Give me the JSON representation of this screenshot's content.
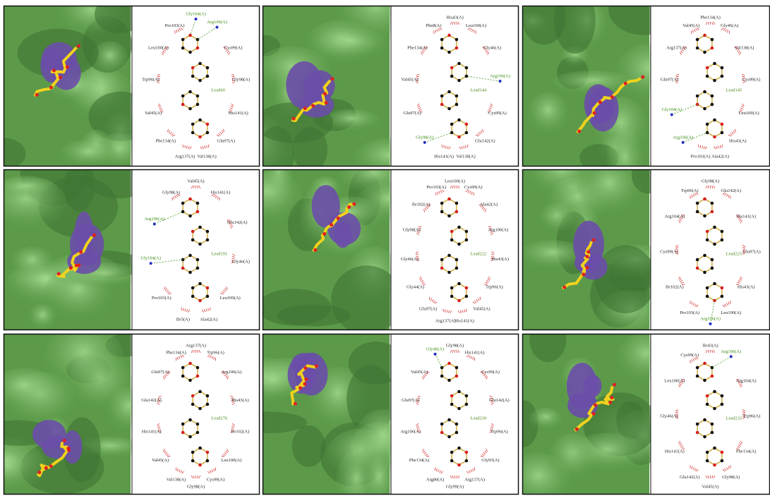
{
  "panels": [
    {
      "ligand": "Lead60",
      "residues": [
        {
          "label": "Gly104(A)",
          "hbond": true
        },
        {
          "label": "Arg106(A)",
          "hbond": true
        },
        {
          "label": "Cys99(A)",
          "hbond": false
        },
        {
          "label": "Gly98(A)",
          "hbond": false
        },
        {
          "label": "His141(A)",
          "hbond": false
        },
        {
          "label": "Glu97(A)",
          "hbond": false
        },
        {
          "label": "Val138(A)",
          "hbond": false
        },
        {
          "label": "Arg137(A)",
          "hbond": false
        },
        {
          "label": "Phe134(A)",
          "hbond": false
        },
        {
          "label": "Val45(A)",
          "hbond": false
        },
        {
          "label": "Trp96(A)",
          "hbond": false
        },
        {
          "label": "Leu100(A)",
          "hbond": false
        },
        {
          "label": "Pro103(A)",
          "hbond": false
        }
      ]
    },
    {
      "ligand": "Lead144",
      "residues": [
        {
          "label": "His43(A)",
          "hbond": false
        },
        {
          "label": "Leu100(A)",
          "hbond": false
        },
        {
          "label": "Gly46(A)",
          "hbond": false
        },
        {
          "label": "Arg106(A)",
          "hbond": true
        },
        {
          "label": "Cys99(A)",
          "hbond": false
        },
        {
          "label": "Glu142(A)",
          "hbond": false
        },
        {
          "label": "Val138(A)",
          "hbond": false
        },
        {
          "label": "His141(A)",
          "hbond": false
        },
        {
          "label": "Gly98(A)",
          "hbond": true
        },
        {
          "label": "Glu97(A)",
          "hbond": false
        },
        {
          "label": "Val45(A)",
          "hbond": false
        },
        {
          "label": "Phe134(A)",
          "hbond": false
        },
        {
          "label": "Phe8(A)",
          "hbond": false
        }
      ]
    },
    {
      "ligand": "Lead145",
      "residues": [
        {
          "label": "Phe134(A)",
          "hbond": false
        },
        {
          "label": "Gly46(A)",
          "hbond": false
        },
        {
          "label": "Val138(A)",
          "hbond": false
        },
        {
          "label": "Cys99(A)",
          "hbond": false
        },
        {
          "label": "Leu100(A)",
          "hbond": false
        },
        {
          "label": "His43(A)",
          "hbond": false
        },
        {
          "label": "Ala42(A)",
          "hbond": false
        },
        {
          "label": "Pro103(A)",
          "hbond": false
        },
        {
          "label": "Arg106(A)",
          "hbond": true
        },
        {
          "label": "Gly104(A)",
          "hbond": true
        },
        {
          "label": "Glu97(A)",
          "hbond": false
        },
        {
          "label": "Arg137(A)",
          "hbond": false
        },
        {
          "label": "Val45(A)",
          "hbond": false
        }
      ]
    },
    {
      "ligand": "Lead191",
      "residues": [
        {
          "label": "Val45(A)",
          "hbond": false
        },
        {
          "label": "His141(A)",
          "hbond": false
        },
        {
          "label": "Glu142(A)",
          "hbond": false
        },
        {
          "label": "Gly46(A)",
          "hbond": false
        },
        {
          "label": "Leu100(A)",
          "hbond": false
        },
        {
          "label": "Ala42(A)",
          "hbond": false
        },
        {
          "label": "Ile5(A)",
          "hbond": false
        },
        {
          "label": "Pro103(A)",
          "hbond": false
        },
        {
          "label": "Gly104(A)",
          "hbond": true
        },
        {
          "label": "Arg106(A)",
          "hbond": true
        },
        {
          "label": "Gly98(A)",
          "hbond": false
        }
      ]
    },
    {
      "ligand": "Lead222",
      "residues": [
        {
          "label": "Leu100(A)",
          "hbond": false
        },
        {
          "label": "Cys99(A)",
          "hbond": false
        },
        {
          "label": "Ala42(A)",
          "hbond": false
        },
        {
          "label": "Arg106(A)",
          "hbond": false
        },
        {
          "label": "His43(A)",
          "hbond": false
        },
        {
          "label": "Trp96(A)",
          "hbond": false
        },
        {
          "label": "Val45(A)",
          "hbond": false
        },
        {
          "label": "His141(A)",
          "hbond": false
        },
        {
          "label": "Arg137(A)",
          "hbond": false
        },
        {
          "label": "Glu97(A)",
          "hbond": false
        },
        {
          "label": "Gly44(A)",
          "hbond": false
        },
        {
          "label": "Gly46(A)",
          "hbond": false
        },
        {
          "label": "Gly98(A)",
          "hbond": false
        },
        {
          "label": "Ile102(A)",
          "hbond": false
        },
        {
          "label": "Pro103(A)",
          "hbond": false
        }
      ]
    },
    {
      "ligand": "Lead225",
      "residues": [
        {
          "label": "Gly98(A)",
          "hbond": false
        },
        {
          "label": "Glu142(A)",
          "hbond": false
        },
        {
          "label": "His141(A)",
          "hbond": false
        },
        {
          "label": "Glu97(A)",
          "hbond": false
        },
        {
          "label": "His43(A)",
          "hbond": false
        },
        {
          "label": "Leu100(A)",
          "hbond": false
        },
        {
          "label": "Arg106(A)",
          "hbond": true
        },
        {
          "label": "Pro103(A)",
          "hbond": false
        },
        {
          "label": "Ile102(A)",
          "hbond": false
        },
        {
          "label": "Cys99(A)",
          "hbond": false
        },
        {
          "label": "Arg104(A)",
          "hbond": false
        },
        {
          "label": "Trp96(A)",
          "hbond": false
        }
      ]
    },
    {
      "ligand": "Lead276",
      "residues": [
        {
          "label": "Arg137(A)",
          "hbond": false
        },
        {
          "label": "Trp96(A)",
          "hbond": false
        },
        {
          "label": "Arg106(A)",
          "hbond": false
        },
        {
          "label": "His43(A)",
          "hbond": false
        },
        {
          "label": "Ile102(A)",
          "hbond": false
        },
        {
          "label": "Leu100(A)",
          "hbond": false
        },
        {
          "label": "Cys99(A)",
          "hbond": false
        },
        {
          "label": "Gly98(A)",
          "hbond": false
        },
        {
          "label": "Val138(A)",
          "hbond": false
        },
        {
          "label": "Val45(A)",
          "hbond": false
        },
        {
          "label": "His141(A)",
          "hbond": false
        },
        {
          "label": "Glu142(A)",
          "hbond": false
        },
        {
          "label": "Glu97(A)",
          "hbond": false
        },
        {
          "label": "Phe134(A)",
          "hbond": false
        }
      ]
    },
    {
      "ligand": "Lead230",
      "residues": [
        {
          "label": "Gly98(A)",
          "hbond": false
        },
        {
          "label": "His141(A)",
          "hbond": false
        },
        {
          "label": "Cys99(A)",
          "hbond": false
        },
        {
          "label": "Glu142(A)",
          "hbond": false
        },
        {
          "label": "Trp96(A)",
          "hbond": false
        },
        {
          "label": "Gly93(A)",
          "hbond": false
        },
        {
          "label": "Arg137(A)",
          "hbond": false
        },
        {
          "label": "Gly99(A)",
          "hbond": false
        },
        {
          "label": "Arg80(A)",
          "hbond": false
        },
        {
          "label": "Phe134(A)",
          "hbond": false
        },
        {
          "label": "Arg106(A)",
          "hbond": false
        },
        {
          "label": "Glu97(A)",
          "hbond": false
        },
        {
          "label": "Val45(A)",
          "hbond": false
        },
        {
          "label": "Gly46(A)",
          "hbond": true
        }
      ]
    },
    {
      "ligand": "Lead232",
      "residues": [
        {
          "label": "Ile43(A)",
          "hbond": false
        },
        {
          "label": "Arg106(A)",
          "hbond": true
        },
        {
          "label": "Arg104(A)",
          "hbond": false
        },
        {
          "label": "Trp96(A)",
          "hbond": false
        },
        {
          "label": "Phe134(A)",
          "hbond": false
        },
        {
          "label": "Gly98(A)",
          "hbond": false
        },
        {
          "label": "Val45(A)",
          "hbond": false
        },
        {
          "label": "Glu142(A)",
          "hbond": false
        },
        {
          "label": "His141(A)",
          "hbond": false
        },
        {
          "label": "Gly46(A)",
          "hbond": false
        },
        {
          "label": "Leu100(A)",
          "hbond": false
        },
        {
          "label": "Cys99(A)",
          "hbond": false
        }
      ]
    }
  ]
}
